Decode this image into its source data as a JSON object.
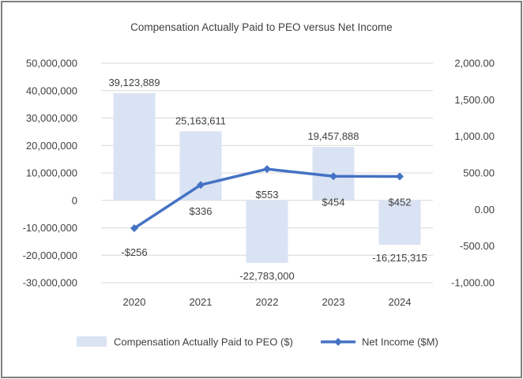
{
  "chart_data": {
    "type": "bar+line",
    "title": "Compensation Actually Paid to PEO versus Net Income",
    "categories": [
      "2020",
      "2021",
      "2022",
      "2023",
      "2024"
    ],
    "series": [
      {
        "name": "Compensation Actually Paid to PEO ($)",
        "type": "bar",
        "axis": "left",
        "color": "#dae3f3",
        "values": [
          39123889,
          25163611,
          -22783000,
          19457888,
          -16215315
        ],
        "labels": [
          "39,123,889",
          "25,163,611",
          "-22,783,000",
          "19,457,888",
          "-16,215,315"
        ]
      },
      {
        "name": "Net Income ($M)",
        "type": "line",
        "axis": "right",
        "color": "#4472c4",
        "marker": "diamond",
        "values": [
          -256,
          336,
          553,
          454,
          452
        ],
        "labels": [
          "-$256",
          "$336",
          "$553",
          "$454",
          "$452"
        ]
      }
    ],
    "y_left": {
      "ylim": [
        -30000000,
        50000000
      ],
      "ticks": [
        50000000,
        40000000,
        30000000,
        20000000,
        10000000,
        0,
        -10000000,
        -20000000,
        -30000000
      ],
      "tick_labels": [
        "50,000,000",
        "40,000,000",
        "30,000,000",
        "20,000,000",
        "10,000,000",
        "0",
        "-10,000,000",
        "-20,000,000",
        "-30,000,000"
      ]
    },
    "y_right": {
      "ylim": [
        -1000,
        2000
      ],
      "ticks": [
        2000,
        1500,
        1000,
        500,
        0,
        -500,
        -1000
      ],
      "tick_labels": [
        "2,000.00",
        "1,500.00",
        "1,000.00",
        "500.00",
        "0.00",
        "-500.00",
        "-1,000.00"
      ]
    },
    "grid": true,
    "legend": "bottom"
  }
}
